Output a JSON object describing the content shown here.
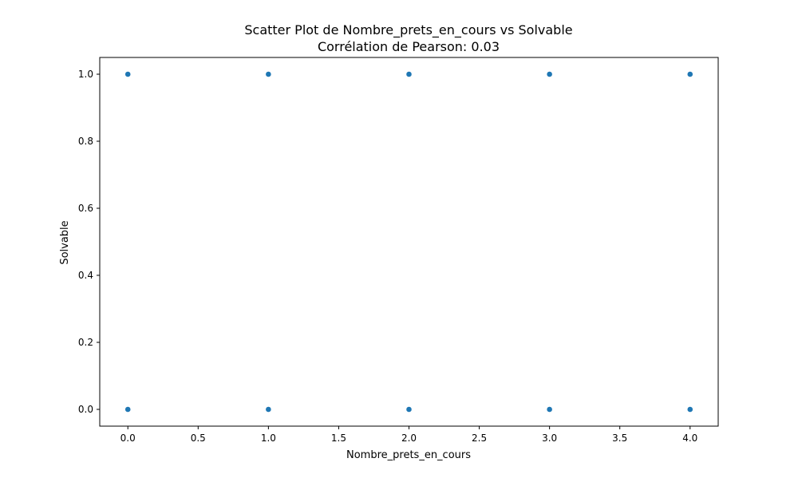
{
  "chart_data": {
    "type": "scatter",
    "title": "Scatter Plot de Nombre_prets_en_cours vs Solvable",
    "subtitle": "Corrélation de Pearson: 0.03",
    "xlabel": "Nombre_prets_en_cours",
    "ylabel": "Solvable",
    "xlim": [
      -0.2,
      4.2
    ],
    "ylim": [
      -0.05,
      1.05
    ],
    "x_ticks": [
      0.0,
      0.5,
      1.0,
      1.5,
      2.0,
      2.5,
      3.0,
      3.5,
      4.0
    ],
    "x_tick_labels": [
      "0.0",
      "0.5",
      "1.0",
      "1.5",
      "2.0",
      "2.5",
      "3.0",
      "3.5",
      "4.0"
    ],
    "y_ticks": [
      0.0,
      0.2,
      0.4,
      0.6,
      0.8,
      1.0
    ],
    "y_tick_labels": [
      "0.0",
      "0.2",
      "0.4",
      "0.6",
      "0.8",
      "1.0"
    ],
    "grid": false,
    "point_color": "#1f77b4",
    "points": [
      {
        "x": 0,
        "y": 1
      },
      {
        "x": 1,
        "y": 1
      },
      {
        "x": 2,
        "y": 1
      },
      {
        "x": 3,
        "y": 1
      },
      {
        "x": 4,
        "y": 1
      },
      {
        "x": 0,
        "y": 0
      },
      {
        "x": 1,
        "y": 0
      },
      {
        "x": 2,
        "y": 0
      },
      {
        "x": 3,
        "y": 0
      },
      {
        "x": 4,
        "y": 0
      }
    ]
  }
}
